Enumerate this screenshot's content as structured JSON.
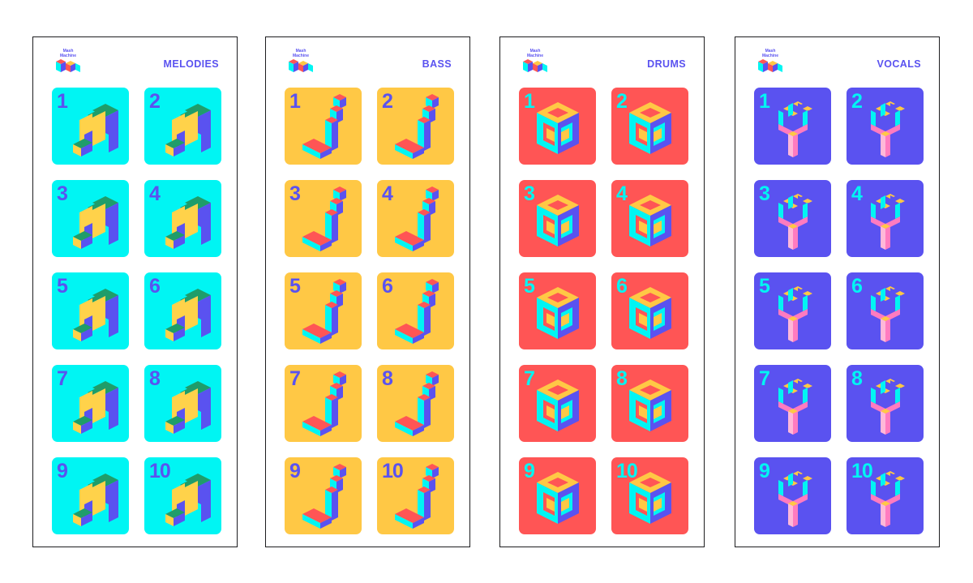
{
  "logo": {
    "line1": "Mash",
    "line2": "Machine"
  },
  "panels": [
    {
      "key": "melodies",
      "title": "MELODIES",
      "tile_color": "#00f5f3",
      "number_color": "#5a52f0",
      "icon": "melody-m-icon",
      "tiles": [
        "1",
        "2",
        "3",
        "4",
        "5",
        "6",
        "7",
        "8",
        "9",
        "10"
      ]
    },
    {
      "key": "bass",
      "title": "BASS",
      "tile_color": "#ffc845",
      "number_color": "#5a52f0",
      "icon": "bass-note-icon",
      "tiles": [
        "1",
        "2",
        "3",
        "4",
        "5",
        "6",
        "7",
        "8",
        "9",
        "10"
      ]
    },
    {
      "key": "drums",
      "title": "DRUMS",
      "tile_color": "#ff5555",
      "number_color": "#00f5f3",
      "icon": "drum-cube-icon",
      "tiles": [
        "1",
        "2",
        "3",
        "4",
        "5",
        "6",
        "7",
        "8",
        "9",
        "10"
      ]
    },
    {
      "key": "vocals",
      "title": "VOCALS",
      "tile_color": "#5a52f0",
      "number_color": "#00f5f3",
      "icon": "microphone-icon",
      "tiles": [
        "1",
        "2",
        "3",
        "4",
        "5",
        "6",
        "7",
        "8",
        "9",
        "10"
      ]
    }
  ]
}
